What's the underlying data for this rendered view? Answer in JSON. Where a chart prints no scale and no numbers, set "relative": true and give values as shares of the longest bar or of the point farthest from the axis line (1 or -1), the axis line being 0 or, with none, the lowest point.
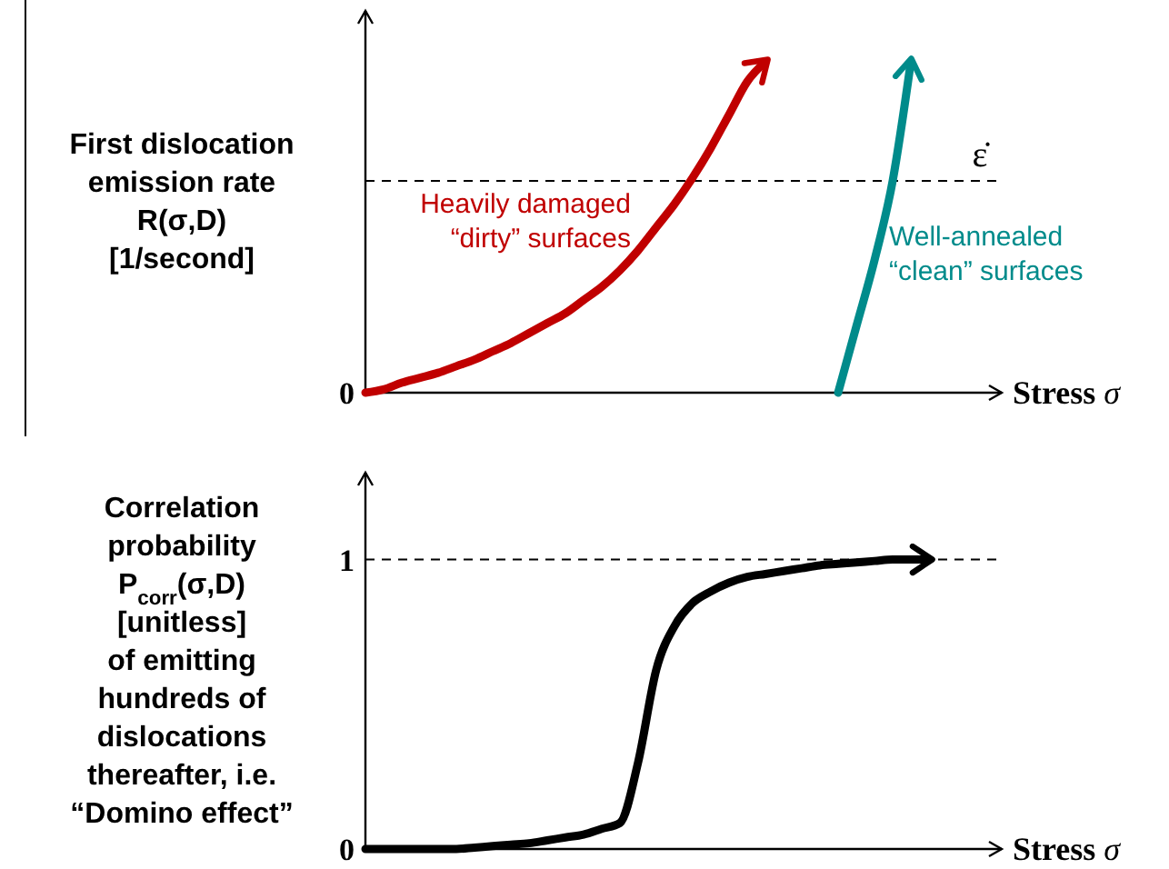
{
  "chart_data": [
    {
      "type": "line",
      "relative": true,
      "ylabel": "First dislocation\nemission rate\nR(σ,D)\n[1/second]",
      "xlabel": "Stress σ",
      "categories": [
        null,
        null,
        null,
        null,
        null,
        null,
        null,
        null,
        null,
        null,
        null,
        null,
        null,
        null,
        null,
        null,
        null,
        null,
        null,
        null,
        null,
        null,
        null,
        null,
        null,
        null,
        null,
        null,
        null,
        null,
        null,
        null,
        null,
        null,
        null,
        null
      ],
      "series": [
        {
          "name": "Heavily damaged\n“dirty” surfaces",
          "color": "#c00000",
          "values": [
            0,
            0.01,
            0.03,
            0.045,
            0.06,
            0.08,
            0.1,
            0.125,
            0.15,
            0.18,
            0.21,
            0.24,
            0.28,
            0.32,
            0.37,
            0.43,
            0.5,
            0.57,
            0.65,
            0.74,
            0.84,
            0.94,
            1,
            null,
            null,
            null,
            null,
            null,
            null,
            null,
            null,
            null,
            null,
            null,
            null,
            null
          ]
        },
        {
          "name": "Well-annealed\n“clean” surfaces",
          "color": "#008b8b",
          "values": [
            null,
            null,
            null,
            null,
            null,
            null,
            null,
            null,
            null,
            null,
            null,
            null,
            null,
            null,
            null,
            null,
            null,
            null,
            null,
            null,
            null,
            null,
            null,
            null,
            null,
            null,
            0,
            0.2,
            0.4,
            0.64,
            1,
            null,
            null,
            null,
            null,
            null
          ]
        }
      ],
      "ref_lines": [
        {
          "axis": "y",
          "value": 0.64,
          "label": "ε̇",
          "line_style": "dashed"
        }
      ],
      "annotations": [
        "0"
      ],
      "grid": false
    },
    {
      "type": "line",
      "ylabel": "Correlation\nprobability\nP$_{corr}$(σ,D)\n[unitless]\nof emitting\nhundreds of\ndislocations\nthereafter, i.e.\n“Domino effect”",
      "xlabel": "Stress σ",
      "categories": [
        null,
        null,
        null,
        null,
        null,
        null,
        null,
        null,
        null,
        null,
        null,
        null,
        null,
        null,
        null,
        null,
        null,
        null,
        null,
        null,
        null,
        null,
        null,
        null,
        null,
        null,
        null,
        null,
        null,
        null,
        null,
        null,
        null,
        null,
        null,
        null
      ],
      "series": [
        {
          "color": "#000000",
          "values": [
            0,
            0,
            0,
            0,
            0,
            0,
            0.005,
            0.01,
            0.015,
            0.02,
            0.03,
            0.04,
            0.05,
            0.07,
            0.09,
            0.3,
            0.62,
            0.77,
            0.85,
            0.89,
            0.92,
            0.94,
            0.95,
            0.96,
            0.97,
            0.98,
            0.985,
            0.99,
            0.995,
            1,
            1,
            1,
            null,
            null,
            null,
            null
          ]
        }
      ],
      "ylim": [
        0,
        1.3
      ],
      "yticks": [
        0,
        1
      ],
      "ref_lines": [
        {
          "axis": "y",
          "value": 1,
          "line_style": "dashed"
        }
      ],
      "grid": false
    }
  ]
}
